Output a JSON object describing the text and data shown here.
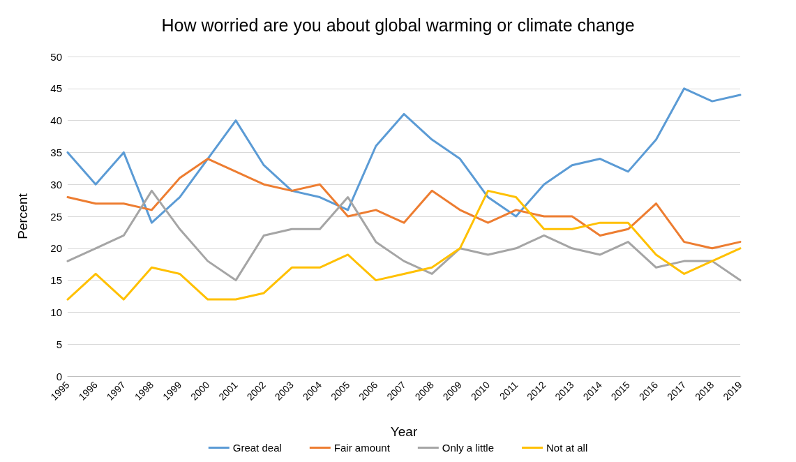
{
  "chart_data": {
    "type": "line",
    "title": "How worried are you about global warming or climate change",
    "xlabel": "Year",
    "ylabel": "Percent",
    "categories": [
      "1995",
      "1996",
      "1997",
      "1998",
      "1999",
      "2000",
      "2001",
      "2002",
      "2003",
      "2004",
      "2005",
      "2006",
      "2007",
      "2008",
      "2009",
      "2010",
      "2011",
      "2012",
      "2013",
      "2014",
      "2015",
      "2016",
      "2017",
      "2018",
      "2019"
    ],
    "series": [
      {
        "name": "Great deal",
        "color": "#5b9bd5",
        "values": [
          35,
          30,
          35,
          24,
          28,
          34,
          40,
          33,
          29,
          28,
          26,
          36,
          41,
          37,
          34,
          28,
          25,
          30,
          33,
          34,
          32,
          37,
          45,
          43,
          44
        ]
      },
      {
        "name": "Fair amount",
        "color": "#ed7d31",
        "values": [
          28,
          27,
          27,
          26,
          31,
          34,
          32,
          30,
          29,
          30,
          25,
          26,
          24,
          29,
          26,
          24,
          26,
          25,
          25,
          22,
          23,
          27,
          21,
          20,
          21
        ]
      },
      {
        "name": "Only a little",
        "color": "#a5a5a5",
        "values": [
          18,
          20,
          22,
          29,
          23,
          18,
          15,
          22,
          23,
          23,
          28,
          21,
          18,
          16,
          20,
          19,
          20,
          22,
          20,
          19,
          21,
          17,
          18,
          18,
          15
        ]
      },
      {
        "name": "Not at all",
        "color": "#ffc000",
        "values": [
          12,
          16,
          12,
          17,
          16,
          12,
          12,
          13,
          17,
          17,
          19,
          15,
          16,
          17,
          20,
          29,
          28,
          23,
          23,
          24,
          24,
          19,
          16,
          18,
          20
        ]
      }
    ],
    "ylim": [
      0,
      50
    ],
    "yticks": [
      0,
      5,
      10,
      15,
      20,
      25,
      30,
      35,
      40,
      45,
      50
    ],
    "grid": "y",
    "legend": "bottom",
    "marker": "none",
    "line_style": "solid"
  }
}
